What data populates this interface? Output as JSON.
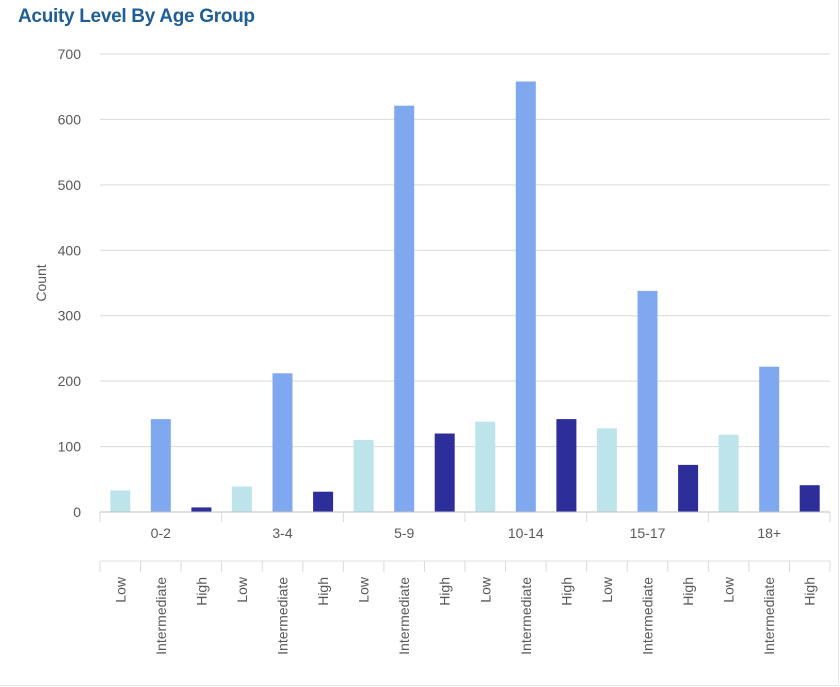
{
  "title": "Acuity Level By Age Group",
  "chart_data": {
    "type": "bar",
    "title": "Acuity Level By Age Group",
    "xlabel": "",
    "ylabel": "Count",
    "ylim": [
      0,
      700
    ],
    "yticks": [
      0,
      100,
      200,
      300,
      400,
      500,
      600,
      700
    ],
    "grid": true,
    "legend": "none",
    "groups": [
      "0-2",
      "3-4",
      "5-9",
      "10-14",
      "15-17",
      "18+"
    ],
    "subcategories": [
      "Low",
      "Intermediate",
      "High"
    ],
    "colors": {
      "Low": "#bde4ea",
      "Intermediate": "#80a8ee",
      "High": "#2e2e9a"
    },
    "series": [
      {
        "name": "Low",
        "values": [
          33,
          39,
          110,
          138,
          128,
          118
        ]
      },
      {
        "name": "Intermediate",
        "values": [
          142,
          212,
          621,
          658,
          338,
          222
        ]
      },
      {
        "name": "High",
        "values": [
          7,
          31,
          120,
          142,
          72,
          41
        ]
      }
    ]
  }
}
